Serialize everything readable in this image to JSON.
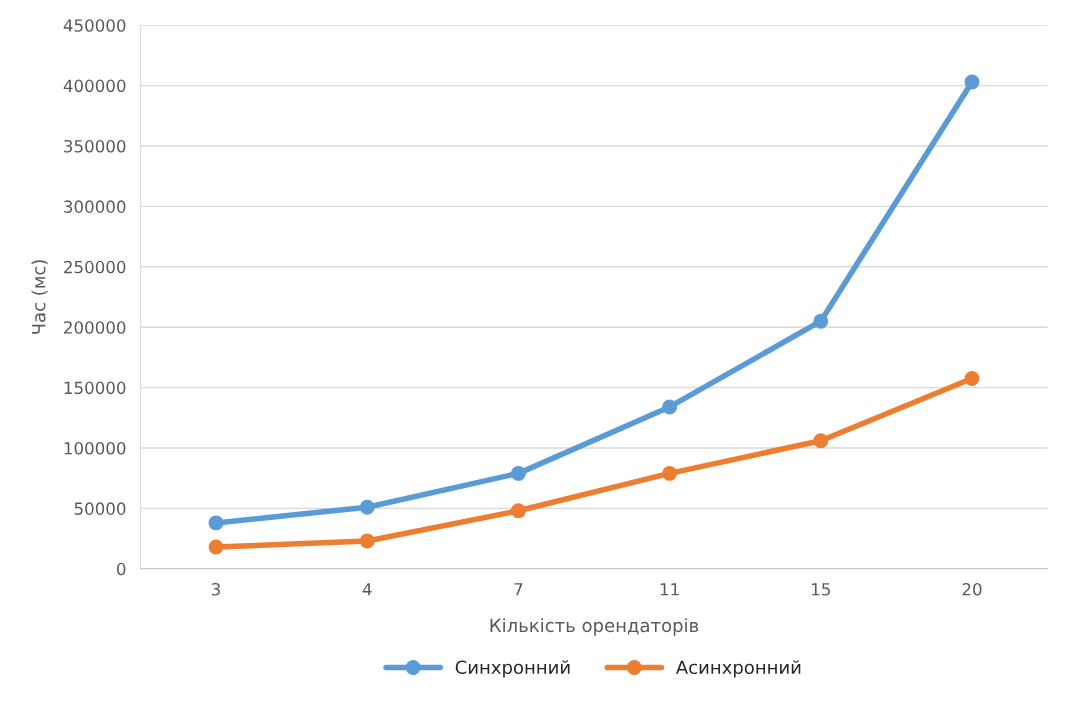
{
  "chart_data": {
    "type": "line",
    "xlabel": "Кількість орендаторів",
    "ylabel": "Час (мс)",
    "categories": [
      "3",
      "4",
      "7",
      "11",
      "15",
      "20"
    ],
    "series": [
      {
        "name": "Синхронний",
        "color": "#5b9bd5",
        "values": [
          38000,
          51000,
          79000,
          134000,
          205000,
          403000
        ]
      },
      {
        "name": "Асинхронний",
        "color": "#ed7d31",
        "values": [
          18000,
          23000,
          48000,
          79000,
          106000,
          157500
        ]
      }
    ],
    "ylim": [
      0,
      450000
    ],
    "yticks": [
      0,
      50000,
      100000,
      150000,
      200000,
      250000,
      300000,
      350000,
      400000,
      450000
    ],
    "grid": "y",
    "legend": "bottom",
    "marker": "circle",
    "line_style": "solid"
  }
}
